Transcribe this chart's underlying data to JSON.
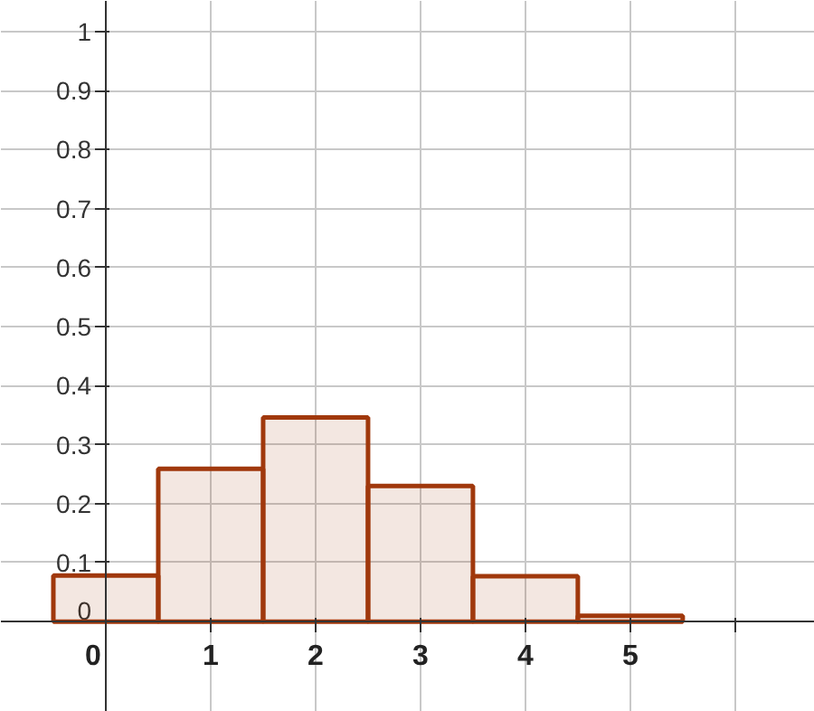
{
  "chart_data": {
    "type": "histogram",
    "bins": [
      -0.5,
      0.5,
      1.5,
      2.5,
      3.5,
      4.5,
      5.5
    ],
    "values": [
      0.078,
      0.259,
      0.346,
      0.23,
      0.077,
      0.01
    ],
    "color": "#a0380c",
    "xlim": [
      -1,
      6.76
    ],
    "ylim": [
      -0.153,
      1.052
    ],
    "xticks": [
      0,
      1,
      2,
      3,
      4,
      5,
      {
        "value": 6,
        "label": null
      }
    ],
    "yticks": [
      0,
      0.1,
      0.2,
      0.3,
      0.4,
      0.5,
      0.6,
      0.7,
      0.8,
      0.9,
      1
    ],
    "grid": true
  }
}
